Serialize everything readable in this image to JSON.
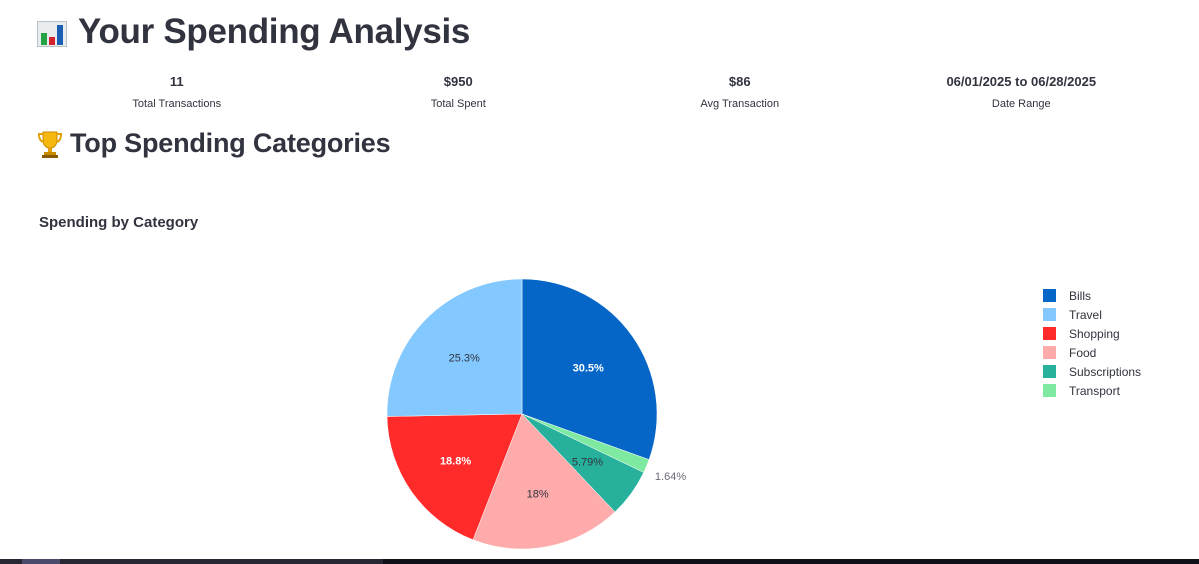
{
  "header": {
    "icon": "bar-chart-icon",
    "title": "Your Spending Analysis"
  },
  "metrics": [
    {
      "value": "11",
      "label": "Total Transactions"
    },
    {
      "value": "$950",
      "label": "Total Spent"
    },
    {
      "value": "$86",
      "label": "Avg Transaction"
    },
    {
      "value": "06/01/2025 to 06/28/2025",
      "label": "Date Range"
    }
  ],
  "section": {
    "icon": "trophy-icon",
    "title": "Top Spending Categories"
  },
  "chart_title": "Spending by Category",
  "chart_data": {
    "type": "pie",
    "title": "Spending by Category",
    "legend_position": "right",
    "slices": [
      {
        "label": "Bills",
        "percent": 30.5,
        "display": "30.5%",
        "color": "#0566c8",
        "label_color": "#ffffff"
      },
      {
        "label": "Transport",
        "percent": 1.64,
        "display": "1.64%",
        "color": "#7de9a1",
        "label_color": "#6a6a7a"
      },
      {
        "label": "Subscriptions",
        "percent": 5.79,
        "display": "5.79%",
        "color": "#27b09b",
        "label_color": "#31333f"
      },
      {
        "label": "Food",
        "percent": 18.0,
        "display": "18%",
        "color": "#ffabab",
        "label_color": "#31333f"
      },
      {
        "label": "Shopping",
        "percent": 18.8,
        "display": "18.8%",
        "color": "#ff2b2b",
        "label_color": "#ffffff"
      },
      {
        "label": "Travel",
        "percent": 25.3,
        "display": "25.3%",
        "color": "#83c9ff",
        "label_color": "#31333f"
      }
    ],
    "legend_order": [
      "Bills",
      "Travel",
      "Shopping",
      "Food",
      "Subscriptions",
      "Transport"
    ]
  }
}
